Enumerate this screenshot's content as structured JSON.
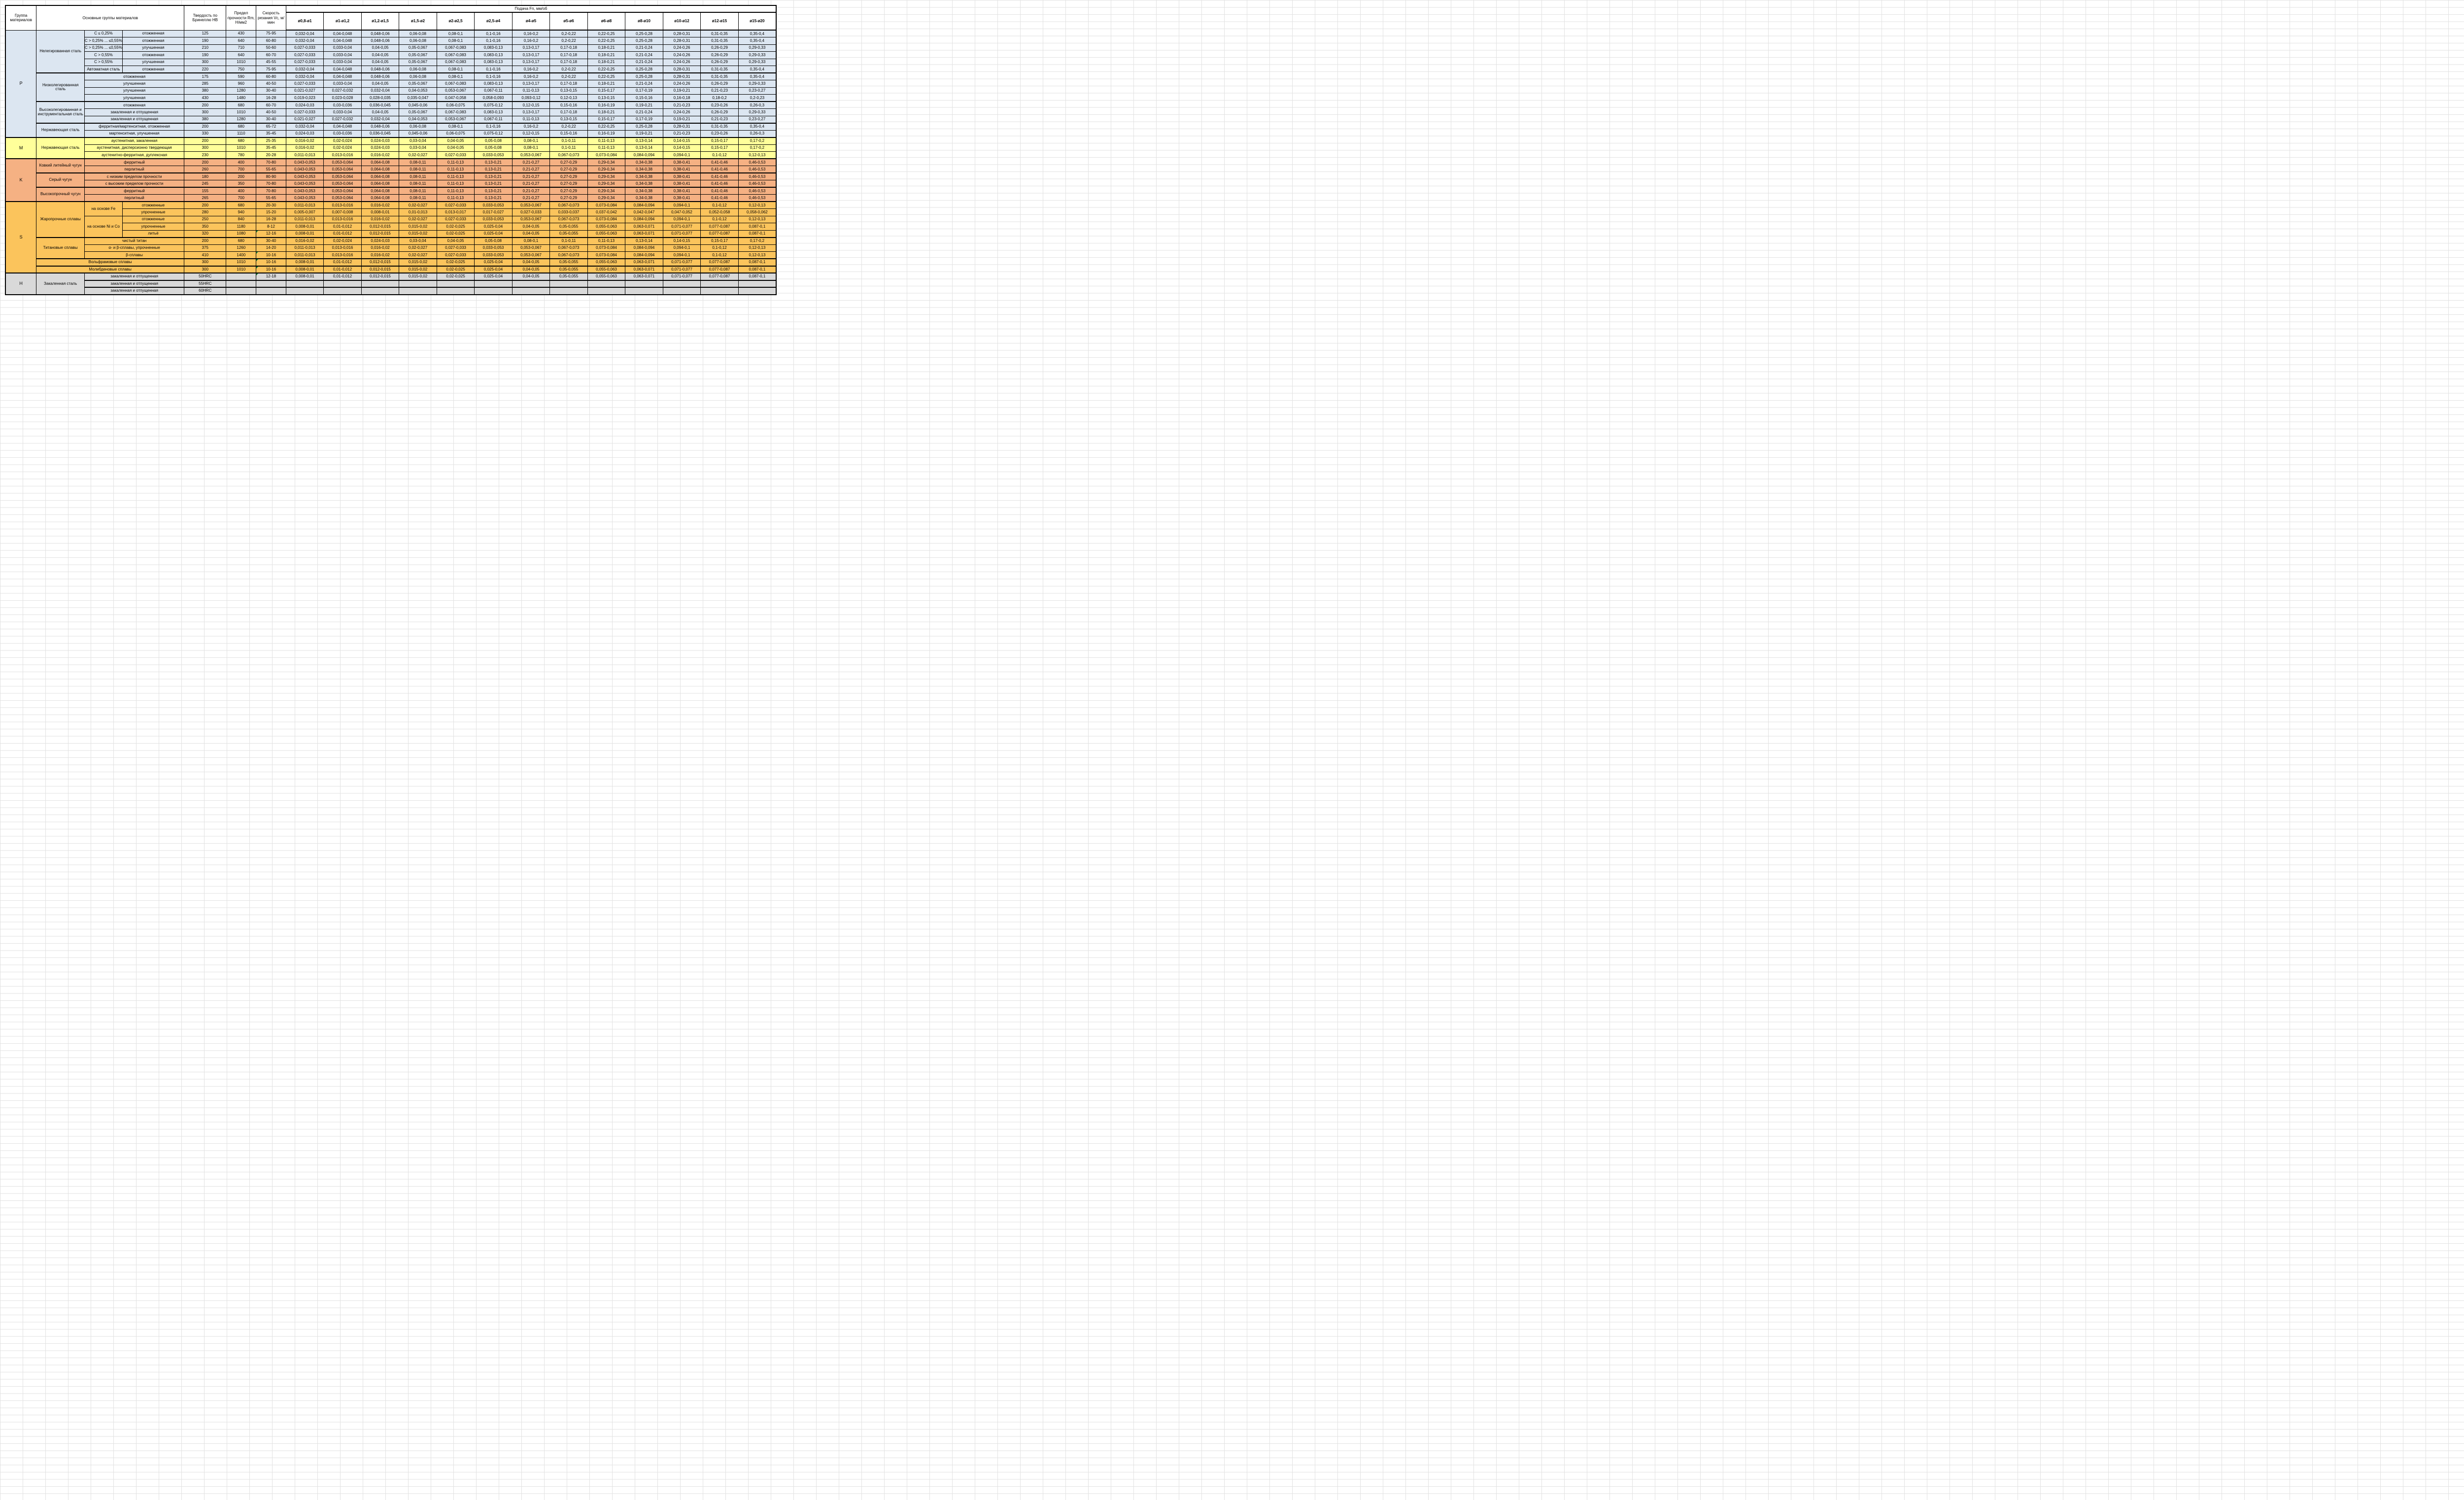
{
  "header": {
    "group": "Группа материалов",
    "main": "Основные группы материалов",
    "hb": "Твердость по Бринеллю HB",
    "rm": "Предел прочности Rm, Н/мм2",
    "vc": "Скорость резания Vc, м/мин",
    "feed": "Подача Fn, мм/об",
    "diameters": [
      "ø0,8-ø1",
      "ø1-ø1,2",
      "ø1,2-ø1,5",
      "ø1,5-ø2",
      "ø2-ø2,5",
      "ø2,5-ø4",
      "ø4-ø5",
      "ø5-ø6",
      "ø6-ø8",
      "ø8-ø10",
      "ø10-ø12",
      "ø12-ø15",
      "ø15-ø20"
    ]
  },
  "colors": {
    "band_p": "#DCE6F1",
    "band_m": "#FFFF9A",
    "band_k": "#F5B183",
    "band_s": "#FBC45C",
    "band_h": "#D9D9D9",
    "gridline": "#E2E2E2",
    "border": "#000000",
    "error_marker": "#1F8A3B"
  },
  "feed_patterns": {
    "A": [
      "0,032-0,04",
      "0,04-0,048",
      "0,048-0,06",
      "0,06-0,08",
      "0,08-0,1",
      "0,1-0,16",
      "0,16-0,2",
      "0,2-0,22",
      "0,22-0,25",
      "0,25-0,28",
      "0,28-0,31",
      "0,31-0,35",
      "0,35-0,4"
    ],
    "B": [
      "0,027-0,033",
      "0,033-0,04",
      "0,04-0,05",
      "0,05-0,067",
      "0,067-0,083",
      "0,083-0,13",
      "0,13-0,17",
      "0,17-0,18",
      "0,18-0,21",
      "0,21-0,24",
      "0,24-0,26",
      "0,26-0,29",
      "0,29-0,33"
    ],
    "C": [
      "0,021-0,027",
      "0,027-0,032",
      "0,032-0,04",
      "0,04-0,053",
      "0,053-0,067",
      "0,067-0,11",
      "0,11-0,13",
      "0,13-0,15",
      "0,15-0,17",
      "0,17-0,19",
      "0,19-0,21",
      "0,21-0,23",
      "0,23-0,27"
    ],
    "D": [
      "0,019-0,023",
      "0,023-0,028",
      "0,028-0,035",
      "0,035-0,047",
      "0,047-0,058",
      "0,058-0,093",
      "0,093-0,12",
      "0,12-0,13",
      "0,13-0,15",
      "0,15-0,16",
      "0,16-0,18",
      "0,18-0,2",
      "0,2-0,23"
    ],
    "E": [
      "0,024-0,03",
      "0,03-0,036",
      "0,036-0,045",
      "0,045-0,06",
      "0,06-0,075",
      "0,075-0,12",
      "0,12-0,15",
      "0,15-0,16",
      "0,16-0,19",
      "0,19-0,21",
      "0,21-0,23",
      "0,23-0,26",
      "0,26-0,3"
    ],
    "F": [
      "0,016-0,02",
      "0,02-0,024",
      "0,024-0,03",
      "0,03-0,04",
      "0,04-0,05",
      "0,05-0,08",
      "0,08-0,1",
      "0,1-0,11",
      "0,11-0,13",
      "0,13-0,14",
      "0,14-0,15",
      "0,15-0,17",
      "0,17-0,2"
    ],
    "G": [
      "0,011-0,013",
      "0,013-0,016",
      "0,016-0,02",
      "0,02-0,027",
      "0,027-0,033",
      "0,033-0,053",
      "0,053-0,067",
      "0,067-0,073",
      "0,073-0,084",
      "0,084-0,094",
      "0,094-0,1",
      "0,1-0,12",
      "0,12-0,13"
    ],
    "H": [
      "0,043-0,053",
      "0,053-0,064",
      "0,064-0,08",
      "0,08-0,11",
      "0,11-0,13",
      "0,13-0,21",
      "0,21-0,27",
      "0,27-0,29",
      "0,29-0,34",
      "0,34-0,38",
      "0,38-0,41",
      "0,41-0,46",
      "0,46-0,53"
    ],
    "I": [
      "0,005-0,007",
      "0,007-0,008",
      "0,008-0,01",
      "0,01-0,013",
      "0,013-0,017",
      "0,017-0,027",
      "0,027-0,033",
      "0,033-0,037",
      "0,037-0,042",
      "0,042-0,047",
      "0,047-0,052",
      "0,052-0,058",
      "0,058-0,062"
    ],
    "J": [
      "0,008-0,01",
      "0,01-0,012",
      "0,012-0,015",
      "0,015-0,02",
      "0,02-0,025",
      "0,025-0,04",
      "0,04-0,05",
      "0,05-0,055",
      "0,055-0,063",
      "0,063-0,071",
      "0,071-0,077",
      "0,077-0,087",
      "0,087-0,1"
    ]
  },
  "rows": [
    {
      "band": "P",
      "grp": {
        "t": "P",
        "r": 15
      },
      "cells": [
        {
          "t": "Нелегированная сталь",
          "r": 6,
          "cls": "name"
        },
        {
          "t": "C ≤ 0,25%"
        },
        {
          "t": "отожженная"
        }
      ],
      "hb": "125",
      "rm": "430",
      "vc": "75-95",
      "feed": "A"
    },
    {
      "band": "P",
      "cells": [
        {
          "t": "C > 0,25% ... ≤0,55%"
        },
        {
          "t": "отожженная"
        }
      ],
      "hb": "190",
      "rm": "640",
      "vc": "60-80",
      "feed": "A"
    },
    {
      "band": "P",
      "cells": [
        {
          "t": "C > 0,25% ... ≤0,55%"
        },
        {
          "t": "улучшенная"
        }
      ],
      "hb": "210",
      "rm": "710",
      "vc": "50-60",
      "feed": "B"
    },
    {
      "band": "P",
      "cells": [
        {
          "t": "C > 0,55%"
        },
        {
          "t": "отожженная"
        }
      ],
      "hb": "190",
      "rm": "640",
      "vc": "60-70",
      "feed": "B"
    },
    {
      "band": "P",
      "cells": [
        {
          "t": "C > 0,55%"
        },
        {
          "t": "улучшенная"
        }
      ],
      "hb": "300",
      "rm": "1010",
      "vc": "45-55",
      "feed": "B"
    },
    {
      "band": "P",
      "cells": [
        {
          "t": "Автоматная сталь"
        },
        {
          "t": "отожженная"
        }
      ],
      "hb": "220",
      "rm": "750",
      "vc": "75-95",
      "feed": "A"
    },
    {
      "band": "P",
      "sep": true,
      "cells": [
        {
          "t": "Низколегированная сталь",
          "r": 4,
          "cls": "name"
        },
        {
          "t": "отожженная",
          "c": 2
        }
      ],
      "hb": "175",
      "rm": "590",
      "vc": "60-80",
      "feed": "A"
    },
    {
      "band": "P",
      "cells": [
        {
          "t": "улучшенная",
          "c": 2
        }
      ],
      "hb": "285",
      "rm": "960",
      "vc": "40-50",
      "feed": "B"
    },
    {
      "band": "P",
      "cells": [
        {
          "t": "улучшенная",
          "c": 2
        }
      ],
      "hb": "380",
      "rm": "1280",
      "vc": "30-40",
      "feed": "C"
    },
    {
      "band": "P",
      "cells": [
        {
          "t": "улучшенная",
          "c": 2
        }
      ],
      "hb": "430",
      "rm": "1480",
      "vc": "16-28",
      "feed": "D"
    },
    {
      "band": "P",
      "sep": true,
      "cells": [
        {
          "t": "Высоколегированная и инструментальная сталь",
          "r": 3,
          "cls": "name"
        },
        {
          "t": "отожженная",
          "c": 2
        }
      ],
      "hb": "200",
      "rm": "680",
      "vc": "60-70",
      "feed": "E"
    },
    {
      "band": "P",
      "cells": [
        {
          "t": "закаленная и отпущенная",
          "c": 2
        }
      ],
      "hb": "300",
      "rm": "1010",
      "vc": "40-50",
      "feed": "B"
    },
    {
      "band": "P",
      "cells": [
        {
          "t": "закаленная и отпущенная",
          "c": 2
        }
      ],
      "hb": "380",
      "rm": "1280",
      "vc": "30-40",
      "feed": "C"
    },
    {
      "band": "P",
      "sep": true,
      "cells": [
        {
          "t": "Нержавеющая сталь",
          "r": 2,
          "cls": "name"
        },
        {
          "t": "ферритная/мартенситная, отожженная",
          "c": 2
        }
      ],
      "hb": "200",
      "rm": "680",
      "vc": "65-72",
      "feed": "A"
    },
    {
      "band": "P",
      "cells": [
        {
          "t": "мартенситная, улучшенная",
          "c": 2
        }
      ],
      "hb": "330",
      "rm": "1110",
      "vc": "35-45",
      "feed": "E"
    },
    {
      "band": "M",
      "sep": true,
      "grp": {
        "t": "M",
        "r": 3
      },
      "cells": [
        {
          "t": "Нержавеющая сталь",
          "r": 3,
          "cls": "name"
        },
        {
          "t": "аустенитная, закаленная",
          "c": 2
        }
      ],
      "hb": "200",
      "rm": "680",
      "vc": "25-35",
      "feed": "F"
    },
    {
      "band": "M",
      "cells": [
        {
          "t": "аустенитная, дисперсионно твердеющая",
          "c": 2
        }
      ],
      "hb": "300",
      "rm": "1010",
      "vc": "35-45",
      "feed": "F"
    },
    {
      "band": "M",
      "cells": [
        {
          "t": "аустенитно-ферритная, дуплексная",
          "c": 2
        }
      ],
      "hb": "230",
      "rm": "780",
      "vc": "20-28",
      "feed": "G"
    },
    {
      "band": "K",
      "sep": true,
      "grp": {
        "t": "K",
        "r": 6
      },
      "cells": [
        {
          "t": "Ковкий литейный чугун",
          "r": 2,
          "cls": "name"
        },
        {
          "t": "ферритный",
          "c": 2
        }
      ],
      "hb": "200",
      "rm": "400",
      "vc": "70-80",
      "feed": "H"
    },
    {
      "band": "K",
      "cells": [
        {
          "t": "перлитный",
          "c": 2
        }
      ],
      "hb": "260",
      "rm": "700",
      "vc": "55-65",
      "feed": "H"
    },
    {
      "band": "K",
      "sep": true,
      "cells": [
        {
          "t": "Серый чугун",
          "r": 2,
          "cls": "name"
        },
        {
          "t": "с низким пределом прочности",
          "c": 2
        }
      ],
      "hb": "180",
      "rm": "200",
      "vc": "80-90",
      "feed": "H"
    },
    {
      "band": "K",
      "cells": [
        {
          "t": "с высоким пределом прочности",
          "c": 2
        }
      ],
      "hb": "245",
      "rm": "350",
      "vc": "70-80",
      "feed": "H"
    },
    {
      "band": "K",
      "sep": true,
      "cells": [
        {
          "t": "Высокопрочный чугун",
          "r": 2,
          "cls": "name"
        },
        {
          "t": "ферритный",
          "c": 2
        }
      ],
      "hb": "155",
      "rm": "400",
      "vc": "70-80",
      "feed": "H"
    },
    {
      "band": "K",
      "cells": [
        {
          "t": "перлитный",
          "c": 2
        }
      ],
      "hb": "265",
      "rm": "700",
      "vc": "55-65",
      "feed": "H"
    },
    {
      "band": "S",
      "sep": true,
      "grp": {
        "t": "S",
        "r": 10
      },
      "cells": [
        {
          "t": "Жаропрочные сплавы",
          "r": 5,
          "cls": "name"
        },
        {
          "t": "на основе Fe",
          "r": 2
        },
        {
          "t": "отожженные"
        }
      ],
      "hb": "200",
      "rm": "680",
      "vc": "20-30",
      "feed": "G"
    },
    {
      "band": "S",
      "cells": [
        {
          "t": "упрочненные"
        }
      ],
      "hb": "280",
      "rm": "940",
      "vc": "15-20",
      "feed": "I"
    },
    {
      "band": "S",
      "cells": [
        {
          "t": "на основе Ni и Co",
          "r": 3
        },
        {
          "t": "отожженные"
        }
      ],
      "hb": "250",
      "rm": "840",
      "vc": "16-28",
      "feed": "G"
    },
    {
      "band": "S",
      "cells": [
        {
          "t": "упрочненные"
        }
      ],
      "hb": "350",
      "rm": "1180",
      "vc": "8-12",
      "feed": "J"
    },
    {
      "band": "S",
      "cells": [
        {
          "t": "литьё"
        }
      ],
      "hb": "320",
      "rm": "1080",
      "vc": "12-16",
      "feed": "J",
      "mark": true
    },
    {
      "band": "S",
      "sep": true,
      "cells": [
        {
          "t": "Титановые сплавы",
          "r": 3,
          "cls": "name"
        },
        {
          "t": "чистый титан",
          "c": 2
        }
      ],
      "hb": "200",
      "rm": "680",
      "vc": "30-40",
      "feed": "F"
    },
    {
      "band": "S",
      "cells": [
        {
          "t": "α- и β-сплавы, упрочненные",
          "c": 2
        }
      ],
      "hb": "375",
      "rm": "1260",
      "vc": "14-20",
      "feed": "G"
    },
    {
      "band": "S",
      "cells": [
        {
          "t": "β-сплавы",
          "c": 2
        }
      ],
      "hb": "410",
      "rm": "1400",
      "vc": "10-16",
      "feed": "G",
      "mark": true
    },
    {
      "band": "S",
      "sep": true,
      "cells": [
        {
          "t": "Вольфрамовые сплавы",
          "c": 3,
          "cls": "name"
        }
      ],
      "hb": "300",
      "rm": "1010",
      "vc": "10-16",
      "feed": "J",
      "mark": true
    },
    {
      "band": "S",
      "sep": true,
      "cells": [
        {
          "t": "Молибденовые сплавы",
          "c": 3,
          "cls": "name"
        }
      ],
      "hb": "300",
      "rm": "1010",
      "vc": "10-16",
      "feed": "J",
      "mark": true
    },
    {
      "band": "H",
      "sep": true,
      "grp": {
        "t": "H",
        "r": 3
      },
      "cells": [
        {
          "t": "Закаленная сталь",
          "r": 3,
          "cls": "name"
        },
        {
          "t": "закаленная и отпущенная",
          "c": 2
        }
      ],
      "hb": "50HRC",
      "rm": "",
      "vc": "12-18",
      "feed": "J",
      "mark": true
    },
    {
      "band": "H",
      "sep": true,
      "cells": [
        {
          "t": "закаленная и отпущенная",
          "c": 2
        }
      ],
      "hb": "55HRC",
      "rm": "",
      "vc": "",
      "feed": null
    },
    {
      "band": "H",
      "sep": true,
      "cells": [
        {
          "t": "закаленная и отпущенная",
          "c": 2
        }
      ],
      "hb": "60HRC",
      "rm": "",
      "vc": "",
      "feed": null
    }
  ]
}
